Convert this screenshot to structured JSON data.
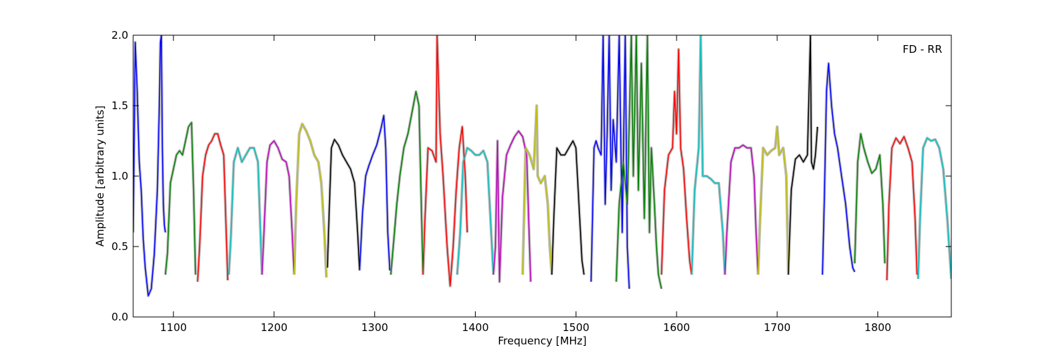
{
  "chart_data": {
    "type": "line",
    "title": "",
    "xlabel": "Frequency [MHz]",
    "ylabel": "Amplitude [arbitrary units]",
    "xlim": [
      1060,
      1873
    ],
    "ylim": [
      0.0,
      2.0
    ],
    "xticks": [
      1100,
      1200,
      1300,
      1400,
      1500,
      1600,
      1700,
      1800
    ],
    "xtick_labels": [
      "1100",
      "1200",
      "1300",
      "1400",
      "1500",
      "1600",
      "1700",
      "1800"
    ],
    "yticks": [
      0.0,
      0.5,
      1.0,
      1.5,
      2.0
    ],
    "ytick_labels": [
      "0.0",
      "0.5",
      "1.0",
      "1.5",
      "2.0"
    ],
    "annotation": "FD - RR",
    "annotation_position": "top-right",
    "grid": false,
    "background_color": "#c0c0c0",
    "subbands": [
      {
        "color": "#0000ff",
        "x": [
          1060,
          1062,
          1064,
          1066,
          1068,
          1070,
          1072,
          1075,
          1078,
          1081,
          1084,
          1086,
          1087,
          1088,
          1089,
          1090,
          1091,
          1092
        ],
        "y": [
          0.6,
          1.95,
          1.6,
          1.1,
          0.9,
          0.55,
          0.35,
          0.15,
          0.2,
          0.45,
          0.9,
          1.5,
          1.95,
          2.0,
          1.2,
          0.8,
          0.65,
          0.6
        ]
      },
      {
        "color": "#008000",
        "x": [
          1092,
          1094,
          1097,
          1100,
          1103,
          1106,
          1109,
          1112,
          1115,
          1118,
          1120,
          1122
        ],
        "y": [
          0.3,
          0.45,
          0.95,
          1.05,
          1.15,
          1.18,
          1.15,
          1.25,
          1.35,
          1.38,
          0.9,
          0.3
        ]
      },
      {
        "color": "#ff0000",
        "x": [
          1124,
          1126,
          1129,
          1132,
          1135,
          1138,
          1141,
          1144,
          1147,
          1150,
          1152,
          1154
        ],
        "y": [
          0.25,
          0.5,
          1.0,
          1.15,
          1.22,
          1.25,
          1.3,
          1.3,
          1.22,
          1.15,
          0.7,
          0.26
        ]
      },
      {
        "color": "#00bfbf",
        "x": [
          1155,
          1157,
          1160,
          1164,
          1168,
          1172,
          1176,
          1180,
          1184,
          1186,
          1188
        ],
        "y": [
          0.3,
          0.55,
          1.1,
          1.2,
          1.1,
          1.15,
          1.2,
          1.2,
          1.1,
          0.7,
          0.3
        ]
      },
      {
        "color": "#bf00bf",
        "x": [
          1188,
          1190,
          1193,
          1196,
          1200,
          1204,
          1208,
          1212,
          1215,
          1218,
          1220
        ],
        "y": [
          0.3,
          0.6,
          1.1,
          1.22,
          1.25,
          1.2,
          1.12,
          1.1,
          1.0,
          0.6,
          0.3
        ]
      },
      {
        "color": "#bfbf00",
        "x": [
          1220,
          1222,
          1225,
          1228,
          1232,
          1236,
          1240,
          1244,
          1247,
          1250,
          1252
        ],
        "y": [
          0.3,
          0.8,
          1.3,
          1.37,
          1.32,
          1.25,
          1.15,
          1.1,
          0.95,
          0.6,
          0.28
        ]
      },
      {
        "color": "#000000",
        "x": [
          1253,
          1255,
          1257,
          1260,
          1264,
          1268,
          1272,
          1276,
          1280,
          1283,
          1285
        ],
        "y": [
          0.35,
          0.8,
          1.2,
          1.26,
          1.22,
          1.15,
          1.1,
          1.05,
          0.95,
          0.6,
          0.33
        ]
      },
      {
        "color": "#0000ff",
        "x": [
          1285,
          1288,
          1291,
          1294,
          1298,
          1302,
          1306,
          1309,
          1311,
          1313,
          1315
        ],
        "y": [
          0.33,
          0.75,
          1.0,
          1.07,
          1.15,
          1.22,
          1.33,
          1.43,
          1.2,
          0.6,
          0.33
        ]
      },
      {
        "color": "#008000",
        "x": [
          1316,
          1319,
          1322,
          1325,
          1329,
          1333,
          1337,
          1341,
          1344,
          1346,
          1348
        ],
        "y": [
          0.3,
          0.55,
          0.8,
          1.0,
          1.2,
          1.3,
          1.45,
          1.6,
          1.5,
          0.9,
          0.3
        ]
      },
      {
        "color": "#ff0000",
        "x": [
          1348,
          1350,
          1353,
          1357,
          1361,
          1362,
          1365,
          1368,
          1372,
          1375,
          1378,
          1381,
          1384,
          1387,
          1390,
          1392
        ],
        "y": [
          0.3,
          0.7,
          1.2,
          1.18,
          1.1,
          2.0,
          1.3,
          1.0,
          0.5,
          0.22,
          0.5,
          0.9,
          1.2,
          1.35,
          1.0,
          0.6
        ]
      },
      {
        "color": "#00bfbf",
        "x": [
          1382,
          1385,
          1388,
          1392,
          1396,
          1400,
          1404,
          1408,
          1412,
          1415,
          1418
        ],
        "y": [
          0.3,
          0.6,
          1.1,
          1.2,
          1.18,
          1.15,
          1.15,
          1.18,
          1.1,
          0.7,
          0.3
        ]
      },
      {
        "color": "#bf00bf",
        "x": [
          1418,
          1420,
          1422,
          1424,
          1427,
          1431,
          1435,
          1439,
          1443,
          1447,
          1451,
          1453,
          1455
        ],
        "y": [
          0.3,
          0.5,
          1.25,
          0.25,
          0.85,
          1.15,
          1.22,
          1.28,
          1.32,
          1.28,
          1.15,
          0.7,
          0.25
        ]
      },
      {
        "color": "#bfbf00",
        "x": [
          1447,
          1450,
          1454,
          1458,
          1461,
          1462,
          1465,
          1469,
          1472,
          1474,
          1476
        ],
        "y": [
          0.3,
          1.2,
          1.15,
          1.05,
          1.5,
          1.0,
          0.95,
          1.0,
          0.8,
          0.5,
          0.3
        ]
      },
      {
        "color": "#000000",
        "x": [
          1476,
          1478,
          1481,
          1485,
          1489,
          1493,
          1497,
          1500,
          1503,
          1506,
          1508
        ],
        "y": [
          0.3,
          0.7,
          1.2,
          1.15,
          1.15,
          1.2,
          1.25,
          1.2,
          0.8,
          0.4,
          0.3
        ]
      },
      {
        "color": "#0000ff",
        "x": [
          1515,
          1518,
          1520,
          1522,
          1525,
          1527,
          1529,
          1531,
          1533,
          1535,
          1537,
          1540,
          1543,
          1546,
          1549,
          1551,
          1553
        ],
        "y": [
          0.25,
          1.2,
          1.25,
          1.2,
          1.15,
          2.0,
          0.8,
          1.3,
          2.0,
          0.9,
          1.4,
          1.1,
          2.0,
          0.6,
          2.0,
          0.5,
          0.2
        ]
      },
      {
        "color": "#008000",
        "x": [
          1540,
          1543,
          1547,
          1551,
          1555,
          1557,
          1560,
          1562,
          1565,
          1568,
          1571,
          1573,
          1575,
          1578,
          1580,
          1582,
          1585
        ],
        "y": [
          0.25,
          0.8,
          1.1,
          0.8,
          2.0,
          1.0,
          2.0,
          0.9,
          1.8,
          0.7,
          2.0,
          0.6,
          1.2,
          0.8,
          0.5,
          0.3,
          0.2
        ]
      },
      {
        "color": "#ff0000",
        "x": [
          1585,
          1588,
          1592,
          1596,
          1598,
          1600,
          1602,
          1604,
          1607,
          1610,
          1613,
          1615
        ],
        "y": [
          0.3,
          0.9,
          1.15,
          1.2,
          1.6,
          1.3,
          1.9,
          1.2,
          1.05,
          0.7,
          0.4,
          0.3
        ]
      },
      {
        "color": "#00bfbf",
        "x": [
          1615,
          1618,
          1622,
          1624,
          1626,
          1630,
          1634,
          1638,
          1642,
          1646,
          1648
        ],
        "y": [
          0.3,
          0.9,
          1.2,
          2.0,
          1.0,
          1.0,
          0.98,
          0.95,
          0.95,
          0.6,
          0.3
        ]
      },
      {
        "color": "#bf00bf",
        "x": [
          1648,
          1650,
          1654,
          1658,
          1662,
          1666,
          1670,
          1674,
          1677,
          1679,
          1681
        ],
        "y": [
          0.3,
          0.6,
          1.1,
          1.2,
          1.2,
          1.22,
          1.2,
          1.2,
          1.0,
          0.6,
          0.3
        ]
      },
      {
        "color": "#bfbf00",
        "x": [
          1681,
          1683,
          1686,
          1690,
          1694,
          1698,
          1700,
          1702,
          1706,
          1709,
          1711
        ],
        "y": [
          0.3,
          0.7,
          1.2,
          1.15,
          1.18,
          1.2,
          1.35,
          1.15,
          1.2,
          1.0,
          0.3
        ]
      },
      {
        "color": "#000000",
        "x": [
          1711,
          1714,
          1718,
          1722,
          1726,
          1730,
          1733,
          1734,
          1736,
          1738,
          1740
        ],
        "y": [
          0.3,
          0.9,
          1.12,
          1.15,
          1.1,
          1.15,
          2.0,
          1.1,
          1.05,
          1.15,
          1.35
        ]
      },
      {
        "color": "#0000ff",
        "x": [
          1745,
          1747,
          1749,
          1751,
          1754,
          1757,
          1760,
          1764,
          1768,
          1772,
          1775,
          1777
        ],
        "y": [
          0.3,
          0.9,
          1.6,
          1.8,
          1.5,
          1.3,
          1.2,
          1.0,
          0.8,
          0.5,
          0.35,
          0.32
        ]
      },
      {
        "color": "#008000",
        "x": [
          1777,
          1780,
          1783,
          1786,
          1790,
          1794,
          1798,
          1802,
          1805,
          1807
        ],
        "y": [
          0.38,
          1.1,
          1.3,
          1.2,
          1.1,
          1.02,
          1.05,
          1.15,
          0.8,
          0.38
        ]
      },
      {
        "color": "#ff0000",
        "x": [
          1809,
          1811,
          1814,
          1818,
          1822,
          1826,
          1830,
          1834,
          1837,
          1839
        ],
        "y": [
          0.26,
          0.8,
          1.2,
          1.27,
          1.23,
          1.28,
          1.2,
          1.1,
          0.7,
          0.3
        ]
      },
      {
        "color": "#00bfbf",
        "x": [
          1840,
          1842,
          1845,
          1849,
          1853,
          1857,
          1861,
          1865,
          1869,
          1873
        ],
        "y": [
          0.27,
          0.7,
          1.2,
          1.27,
          1.25,
          1.26,
          1.2,
          1.05,
          0.7,
          0.27
        ]
      }
    ]
  }
}
